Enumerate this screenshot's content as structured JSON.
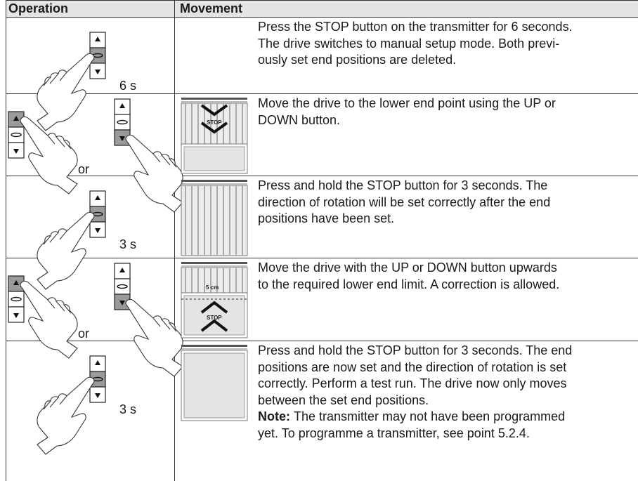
{
  "table": {
    "headers": [
      "Operation",
      "Movement"
    ],
    "rows": [
      {
        "operation_labels": [
          "6 s"
        ],
        "illustration_labels": [],
        "description": [
          "Press the STOP button on the transmitter for 6 seconds.",
          "The drive switches to manual setup mode. Both previ-",
          "ously set end positions are deleted."
        ]
      },
      {
        "operation_labels": [
          "or"
        ],
        "illustration_labels": [
          "STOP"
        ],
        "description": [
          "Move the drive to the lower end point using the UP or",
          "DOWN button."
        ]
      },
      {
        "operation_labels": [
          "3 s"
        ],
        "illustration_labels": [],
        "description": [
          "Press and hold the STOP button for 3 seconds. The",
          "direction of rotation will be set correctly after the end",
          "positions have been set."
        ]
      },
      {
        "operation_labels": [
          "or"
        ],
        "illustration_labels": [
          "5 cm",
          "STOP"
        ],
        "description": [
          "Move the drive with the UP or DOWN button upwards",
          "to the required lower end limit. A correction is allowed."
        ]
      },
      {
        "operation_labels": [
          "3 s"
        ],
        "illustration_labels": [],
        "description": [
          "Press and hold the STOP button for 3 seconds. The end",
          "positions are now set and the direction of rotation is set",
          "correctly. Perform a test run. The drive now only moves",
          "between the set end positions."
        ],
        "note_label": "Note:",
        "note": [
          "The transmitter may not have been programmed",
          "yet. To programme a transmitter, see point 5.2.4."
        ]
      }
    ]
  }
}
